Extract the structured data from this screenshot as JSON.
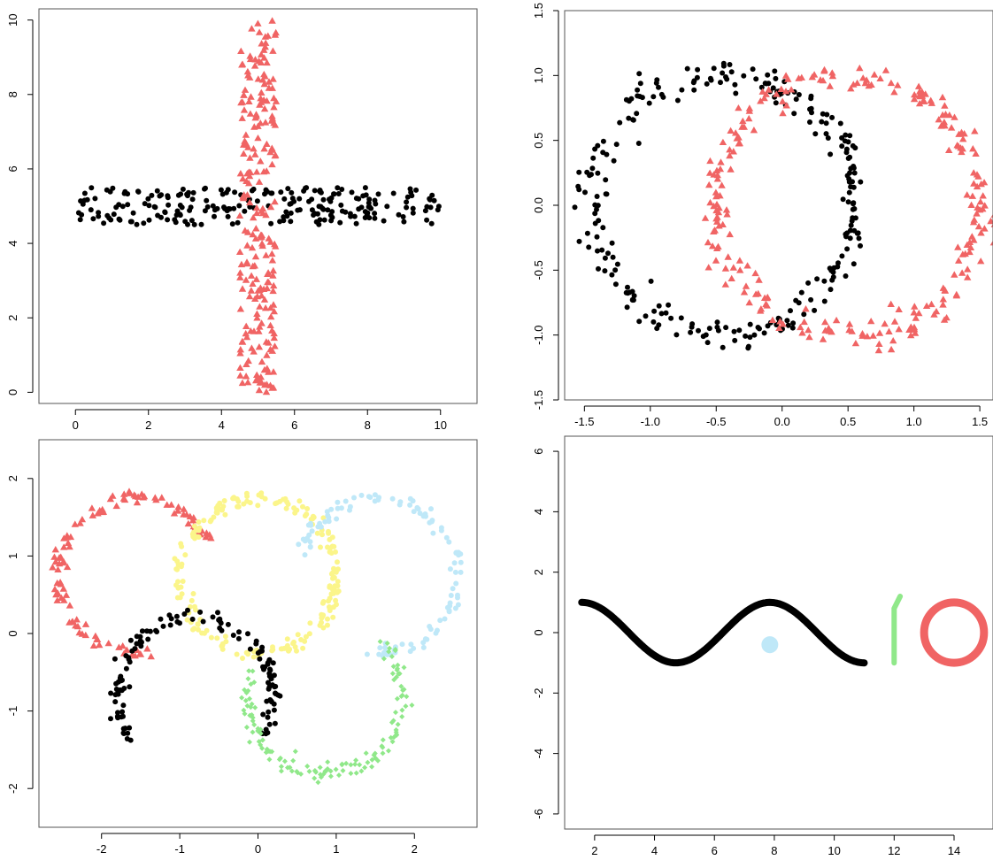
{
  "colors": {
    "black": "#000000",
    "red": "#f06464",
    "yellow": "#fbf58a",
    "blue": "#bfe8f8",
    "green": "#90e88a"
  },
  "chart_data": [
    {
      "type": "scatter",
      "xlim": [
        -1,
        11
      ],
      "ylim": [
        -0.3,
        10.3
      ],
      "x_ticks": [
        "0",
        "2",
        "4",
        "6",
        "8",
        "10"
      ],
      "x_tick_values": [
        0,
        2,
        4,
        6,
        8,
        10
      ],
      "y_ticks": [
        "0",
        "2",
        "4",
        "6",
        "8",
        "10"
      ],
      "y_tick_values": [
        0,
        2,
        4,
        6,
        8,
        10
      ],
      "grid": false,
      "series": [
        {
          "marker": "circle",
          "color": "black",
          "shape": "band-horizontal",
          "x_range": [
            0,
            10
          ],
          "y_range": [
            4.5,
            5.5
          ],
          "points": 230
        },
        {
          "marker": "triangle",
          "color": "red",
          "shape": "band-vertical",
          "x_range": [
            4.5,
            5.5
          ],
          "y_range": [
            0,
            10
          ],
          "points": 230
        }
      ]
    },
    {
      "type": "scatter",
      "xlim": [
        -1.65,
        1.6
      ],
      "ylim": [
        -1.5,
        1.5
      ],
      "x_ticks": [
        "-1.5",
        "-1.0",
        "-0.5",
        "0.0",
        "0.5",
        "1.0",
        "1.5"
      ],
      "x_tick_values": [
        -1.5,
        -1.0,
        -0.5,
        0.0,
        0.5,
        1.0,
        1.5
      ],
      "y_ticks": [
        "-1.5",
        "-1.0",
        "-0.5",
        "0.0",
        "0.5",
        "1.0",
        "1.5"
      ],
      "y_tick_values": [
        -1.5,
        -1.0,
        -0.5,
        0.0,
        0.5,
        1.0,
        1.5
      ],
      "grid": false,
      "series": [
        {
          "marker": "circle",
          "color": "black",
          "shape": "ring",
          "center": [
            -0.45,
            0.0
          ],
          "radius": 1.0,
          "noise": 0.06,
          "points": 260
        },
        {
          "marker": "triangle",
          "color": "red",
          "shape": "ring",
          "center": [
            0.5,
            0.0
          ],
          "radius": 1.0,
          "noise": 0.06,
          "points": 260
        }
      ]
    },
    {
      "type": "scatter",
      "xlim": [
        -2.8,
        2.8
      ],
      "ylim": [
        -2.5,
        2.5
      ],
      "x_ticks": [
        "-2",
        "-1",
        "0",
        "1",
        "2"
      ],
      "x_tick_values": [
        -2,
        -1,
        0,
        1,
        2
      ],
      "y_ticks": [
        "-2",
        "-1",
        "0",
        "1",
        "2"
      ],
      "y_tick_values": [
        -2,
        -1,
        0,
        1,
        2
      ],
      "grid": false,
      "series": [
        {
          "marker": "triangle",
          "color": "red",
          "shape": "ring-arc",
          "center": [
            -1.55,
            0.75
          ],
          "radius": 1.0,
          "arc_deg": [
            25,
            280
          ],
          "noise": 0.05,
          "points": 110
        },
        {
          "marker": "circle",
          "color": "yellow",
          "shape": "ring",
          "center": [
            0.0,
            0.75
          ],
          "radius": 1.0,
          "noise": 0.05,
          "points": 200
        },
        {
          "marker": "circle",
          "color": "blue",
          "shape": "ring-arc",
          "center": [
            1.55,
            0.75
          ],
          "radius": 1.0,
          "arc_deg": [
            -100,
            165
          ],
          "noise": 0.05,
          "points": 110
        },
        {
          "marker": "circle",
          "color": "black",
          "shape": "ring-arc",
          "center": [
            -0.8,
            -0.8
          ],
          "radius": 1.0,
          "arc_deg": [
            -30,
            215
          ],
          "noise": 0.05,
          "points": 130
        },
        {
          "marker": "diamond",
          "color": "green",
          "shape": "ring-arc",
          "center": [
            0.85,
            -0.8
          ],
          "radius": 1.0,
          "arc_deg": [
            -200,
            45
          ],
          "noise": 0.05,
          "points": 140
        }
      ]
    },
    {
      "type": "scatter",
      "xlim": [
        1.0,
        15.3
      ],
      "ylim": [
        -6.5,
        6.5
      ],
      "x_ticks": [
        "2",
        "4",
        "6",
        "8",
        "10",
        "12",
        "14"
      ],
      "x_tick_values": [
        2,
        4,
        6,
        8,
        10,
        12,
        14
      ],
      "y_ticks": [
        "-6",
        "-4",
        "-2",
        "0",
        "2",
        "4",
        "6"
      ],
      "y_tick_values": [
        -6,
        -4,
        -2,
        0,
        2,
        4,
        6
      ],
      "grid": false,
      "series": [
        {
          "marker": "line",
          "color": "black",
          "shape": "cosine",
          "x_range": [
            1.57,
            11.0
          ],
          "amplitude": 1.0
        },
        {
          "marker": "blob",
          "color": "blue",
          "shape": "disc",
          "center": [
            7.85,
            -0.4
          ],
          "radius": 0.28
        },
        {
          "marker": "line",
          "color": "green",
          "shape": "segment",
          "points_xy": [
            [
              12.0,
              -1.0
            ],
            [
              12.0,
              0.8
            ],
            [
              12.2,
              1.2
            ]
          ]
        },
        {
          "marker": "ring",
          "color": "red",
          "shape": "circle",
          "center": [
            14.0,
            0.0
          ],
          "radius": 1.0
        }
      ]
    }
  ]
}
